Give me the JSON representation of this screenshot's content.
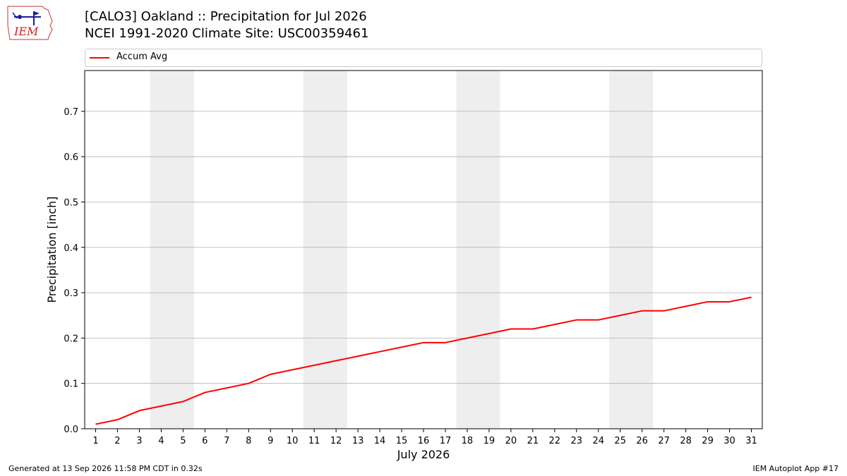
{
  "header": {
    "title_line1": "[CALO3] Oakland :: Precipitation for Jul 2026",
    "title_line2": "NCEI 1991-2020 Climate Site: USC00359461",
    "logo_text": "IEM"
  },
  "footer": {
    "left": "Generated at 13 Sep 2026 11:58 PM CDT in 0.32s",
    "right": "IEM Autoplot App #17"
  },
  "colors": {
    "line": "#ff0000",
    "weekend_band": "#eeeeee",
    "grid": "#b0b0b0"
  },
  "chart_data": {
    "type": "line",
    "title": "[CALO3] Oakland :: Precipitation for Jul 2026",
    "subtitle": "NCEI 1991-2020 Climate Site: USC00359461",
    "xlabel": "July 2026",
    "ylabel": "Precipitation [inch]",
    "x": [
      1,
      2,
      3,
      4,
      5,
      6,
      7,
      8,
      9,
      10,
      11,
      12,
      13,
      14,
      15,
      16,
      17,
      18,
      19,
      20,
      21,
      22,
      23,
      24,
      25,
      26,
      27,
      28,
      29,
      30,
      31
    ],
    "series": [
      {
        "name": "Accum Avg",
        "color": "#ff0000",
        "values": [
          0.01,
          0.02,
          0.04,
          0.05,
          0.06,
          0.08,
          0.09,
          0.1,
          0.12,
          0.13,
          0.14,
          0.15,
          0.16,
          0.17,
          0.18,
          0.19,
          0.19,
          0.2,
          0.21,
          0.22,
          0.22,
          0.23,
          0.24,
          0.24,
          0.25,
          0.26,
          0.26,
          0.27,
          0.28,
          0.28,
          0.29
        ]
      }
    ],
    "xlim": [
      0.5,
      31.5
    ],
    "ylim": [
      0,
      0.79
    ],
    "yticks": [
      0.0,
      0.1,
      0.2,
      0.3,
      0.4,
      0.5,
      0.6,
      0.7
    ],
    "ytick_labels": [
      "0.0",
      "0.1",
      "0.2",
      "0.3",
      "0.4",
      "0.5",
      "0.6",
      "0.7"
    ],
    "xticks": [
      1,
      2,
      3,
      4,
      5,
      6,
      7,
      8,
      9,
      10,
      11,
      12,
      13,
      14,
      15,
      16,
      17,
      18,
      19,
      20,
      21,
      22,
      23,
      24,
      25,
      26,
      27,
      28,
      29,
      30,
      31
    ],
    "weekend_bands": [
      [
        3.5,
        5.5
      ],
      [
        10.5,
        12.5
      ],
      [
        17.5,
        19.5
      ],
      [
        24.5,
        26.5
      ]
    ],
    "grid": "horizontal",
    "legend_position": "top"
  }
}
